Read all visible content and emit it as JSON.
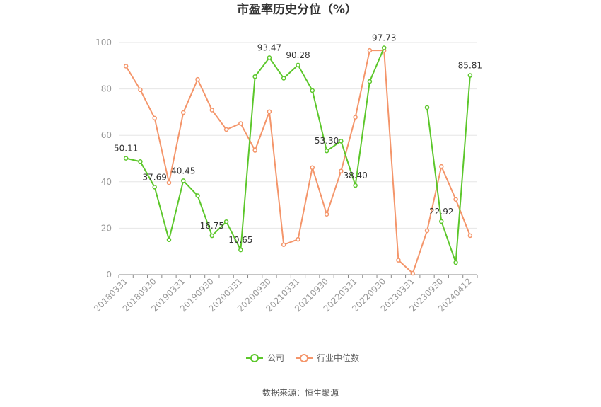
{
  "chart_data": {
    "type": "line",
    "title": "市盈率历史分位（%）",
    "source": "数据来源：恒生聚源",
    "ylim": [
      0,
      100
    ],
    "yticks": [
      0,
      20,
      40,
      60,
      80,
      100
    ],
    "grid": true,
    "legend_position": "bottom",
    "x": [
      "20180331",
      "20180630",
      "20180930",
      "20181231",
      "20190331",
      "20190630",
      "20190930",
      "20191231",
      "20200331",
      "20200630",
      "20200930",
      "20201231",
      "20210331",
      "20210630",
      "20210930",
      "20211231",
      "20220331",
      "20220630",
      "20220930",
      "20221231",
      "20230331",
      "20230630",
      "20230930",
      "20231231",
      "20240412"
    ],
    "xticklabels": [
      "20180331",
      "20180930",
      "20190331",
      "20190930",
      "20200331",
      "20200930",
      "20210331",
      "20210930",
      "20220331",
      "20220930",
      "20230331",
      "20230930",
      "20240412"
    ],
    "series": [
      {
        "name": "公司",
        "color": "#5cc72b",
        "values": [
          50.11,
          48.7,
          37.69,
          15.0,
          40.45,
          34.0,
          16.75,
          22.8,
          10.65,
          85.3,
          93.47,
          84.6,
          90.28,
          79.3,
          53.3,
          57.5,
          38.4,
          83.2,
          97.73,
          null,
          null,
          72.0,
          22.92,
          5.2,
          85.81
        ],
        "labels": [
          {
            "index": 0,
            "text": "50.11"
          },
          {
            "index": 2,
            "text": "37.69"
          },
          {
            "index": 4,
            "text": "40.45"
          },
          {
            "index": 6,
            "text": "16.75"
          },
          {
            "index": 8,
            "text": "10.65"
          },
          {
            "index": 10,
            "text": "93.47"
          },
          {
            "index": 12,
            "text": "90.28"
          },
          {
            "index": 14,
            "text": "53.30"
          },
          {
            "index": 16,
            "text": "38.40"
          },
          {
            "index": 18,
            "text": "97.73"
          },
          {
            "index": 22,
            "text": "22.92"
          },
          {
            "index": 24,
            "text": "85.81"
          }
        ]
      },
      {
        "name": "行业中位数",
        "color": "#f4956a",
        "values": [
          89.8,
          79.6,
          67.4,
          39.6,
          69.8,
          84.1,
          70.9,
          62.5,
          65.1,
          53.5,
          70.2,
          12.9,
          15.2,
          46.1,
          26.0,
          44.6,
          67.8,
          96.6,
          96.6,
          6.2,
          0.6,
          18.9,
          46.6,
          32.4,
          16.8
        ]
      }
    ]
  }
}
